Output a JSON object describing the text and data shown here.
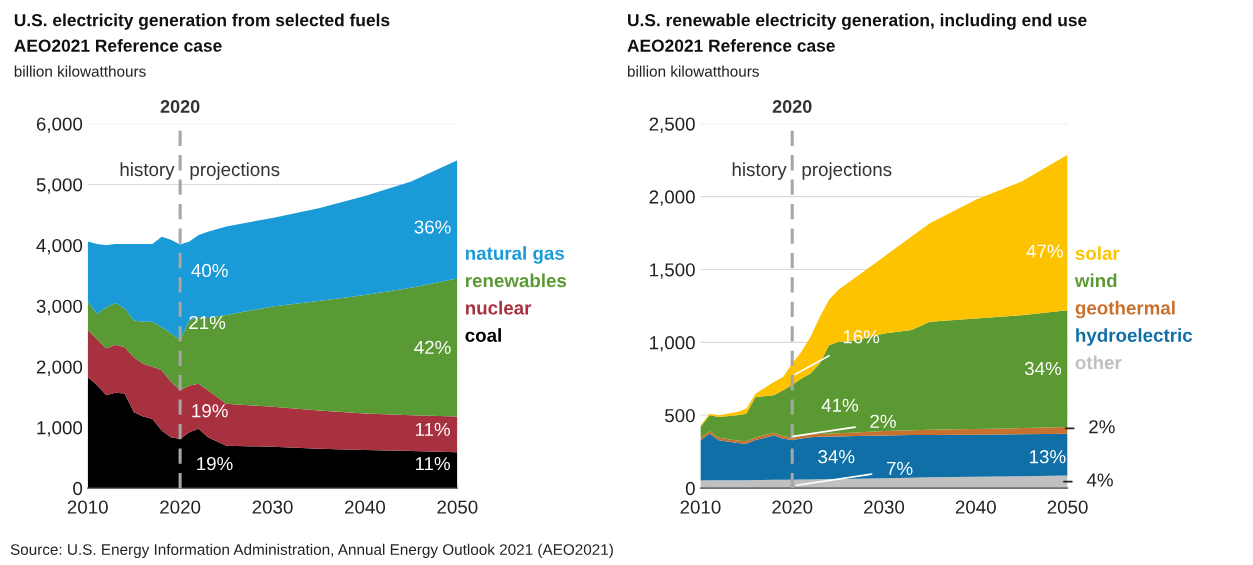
{
  "chart_data": [
    {
      "type": "area",
      "stacked": true,
      "title": "U.S. electricity generation from selected fuels",
      "subtitle": "AEO2021 Reference case",
      "ylabel": "billion kilowatthours",
      "x": [
        2010,
        2011,
        2012,
        2013,
        2014,
        2015,
        2016,
        2017,
        2018,
        2019,
        2020,
        2021,
        2022,
        2023,
        2025,
        2030,
        2035,
        2040,
        2045,
        2050
      ],
      "series": [
        {
          "name": "coal",
          "color": "#000000",
          "values": [
            1830,
            1700,
            1530,
            1570,
            1560,
            1250,
            1180,
            1140,
            950,
            840,
            810,
            920,
            980,
            840,
            700,
            680,
            650,
            630,
            610,
            590
          ]
        },
        {
          "name": "nuclear",
          "color": "#a8313f",
          "values": [
            780,
            750,
            770,
            790,
            760,
            900,
            870,
            860,
            990,
            910,
            800,
            770,
            740,
            770,
            690,
            660,
            630,
            600,
            590,
            590
          ]
        },
        {
          "name": "renewables",
          "color": "#5a9a35",
          "values": [
            460,
            420,
            680,
            690,
            640,
            610,
            690,
            740,
            710,
            800,
            830,
            1070,
            1100,
            1190,
            1460,
            1650,
            1800,
            1950,
            2100,
            2270
          ]
        },
        {
          "name": "natural gas",
          "color": "#1a9bd7",
          "values": [
            990,
            1150,
            1020,
            970,
            1060,
            1260,
            1280,
            1280,
            1490,
            1540,
            1570,
            1300,
            1350,
            1420,
            1460,
            1460,
            1530,
            1630,
            1750,
            1950
          ]
        }
      ],
      "xlim": [
        2010,
        2050
      ],
      "xticks": [
        2010,
        2020,
        2030,
        2040,
        2050
      ],
      "ylim": [
        0,
        6000
      ],
      "yticks": [
        0,
        {
          "value": 1000,
          "label": "1,000"
        },
        {
          "value": 2000,
          "label": "2,000"
        },
        {
          "value": 3000,
          "label": "3,000"
        },
        {
          "value": 4000,
          "label": "4,000"
        },
        {
          "value": 5000,
          "label": "5,000"
        },
        {
          "value": 6000,
          "label": "6,000"
        }
      ],
      "grid": "y",
      "legend": "right",
      "ref_lines": [
        {
          "axis": "x",
          "value": 2020,
          "label": "2020",
          "color": "#a6a6a6",
          "line_style": "dashed"
        }
      ],
      "annotations": [
        "history",
        "projections",
        "Source: U.S. Energy Information Administration, Annual Energy Outlook 2021 (AEO2021)",
        "40%",
        "21%",
        "19%",
        "19%",
        "36%",
        "42%",
        "11%",
        "11%"
      ]
    },
    {
      "type": "area",
      "stacked": true,
      "title": "U.S. renewable electricity generation, including end use",
      "subtitle": "AEO2021 Reference case",
      "ylabel": "billion kilowatthours",
      "x": [
        2010,
        2011,
        2012,
        2014,
        2015,
        2016,
        2018,
        2019,
        2020,
        2021,
        2022,
        2023,
        2024,
        2025,
        2027,
        2030,
        2033,
        2035,
        2040,
        2045,
        2050
      ],
      "series": [
        {
          "name": "other",
          "color": "#c0c0c0",
          "values": [
            53,
            54,
            54,
            55,
            55,
            56,
            57,
            57,
            58,
            59,
            60,
            61,
            62,
            63,
            65,
            68,
            72,
            74,
            78,
            82,
            87
          ]
        },
        {
          "name": "hydroelectric",
          "color": "#0f6fa6",
          "values": [
            275,
            319,
            274,
            255,
            250,
            274,
            305,
            283,
            270,
            281,
            290,
            291,
            293,
            292,
            293,
            294,
            292,
            291,
            289,
            288,
            286
          ]
        },
        {
          "name": "geothermal",
          "color": "#c8702e",
          "values": [
            17,
            17,
            17,
            17,
            17,
            17,
            18,
            17,
            17,
            18,
            19,
            20,
            20,
            22,
            24,
            30,
            33,
            35,
            38,
            42,
            46
          ]
        },
        {
          "name": "wind",
          "color": "#5b9a32",
          "values": [
            74,
            110,
            143,
            173,
            189,
            278,
            257,
            314,
            365,
            394,
            417,
            483,
            606,
            626,
            632,
            669,
            688,
            741,
            759,
            775,
            802
          ]
        },
        {
          "name": "solar",
          "color": "#fdc300",
          "values": [
            11,
            11,
            12,
            22,
            34,
            23,
            91,
            92,
            145,
            183,
            252,
            320,
            309,
            356,
            437,
            527,
            641,
            677,
            815,
            917,
            1066
          ]
        }
      ],
      "xlim": [
        2010,
        2050
      ],
      "xticks": [
        2010,
        2020,
        2030,
        2040,
        2050
      ],
      "ylim": [
        0,
        2500
      ],
      "yticks": [
        0,
        500,
        {
          "value": 1000,
          "label": "1,000"
        },
        {
          "value": 1500,
          "label": "1,500"
        },
        {
          "value": 2000,
          "label": "2,000"
        },
        {
          "value": 2500,
          "label": "2,500"
        }
      ],
      "grid": "y",
      "legend": "right",
      "ref_lines": [
        {
          "axis": "x",
          "value": 2020,
          "label": "2020",
          "color": "#a6a6a6",
          "line_style": "dashed"
        }
      ],
      "annotations": [
        "history",
        "projections",
        {
          "text": "16%",
          "x": 2020.3,
          "y": 780
        },
        "41%",
        {
          "text": "2%",
          "x": 2020.1,
          "y": 355
        },
        "34%",
        {
          "text": "7%",
          "x": 2020.5,
          "y": 20
        },
        "47%",
        "34%",
        "13%",
        {
          "text": "2%",
          "x": 2049.8,
          "y": 410
        },
        {
          "text": "4%",
          "x": 2049.6,
          "y": 45
        }
      ]
    }
  ]
}
